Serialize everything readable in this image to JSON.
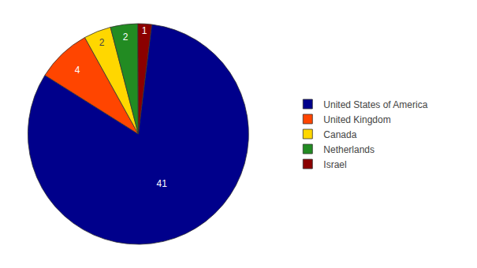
{
  "chart_data": {
    "type": "pie",
    "categories": [
      "United States of America",
      "United Kingdom",
      "Canada",
      "Netherlands",
      "Israel"
    ],
    "values": [
      41,
      4,
      2,
      2,
      1
    ],
    "colors": [
      "#00008B",
      "#FF4500",
      "#FFD700",
      "#228B22",
      "#8B0000"
    ],
    "data_labels": true,
    "legend": "right"
  }
}
